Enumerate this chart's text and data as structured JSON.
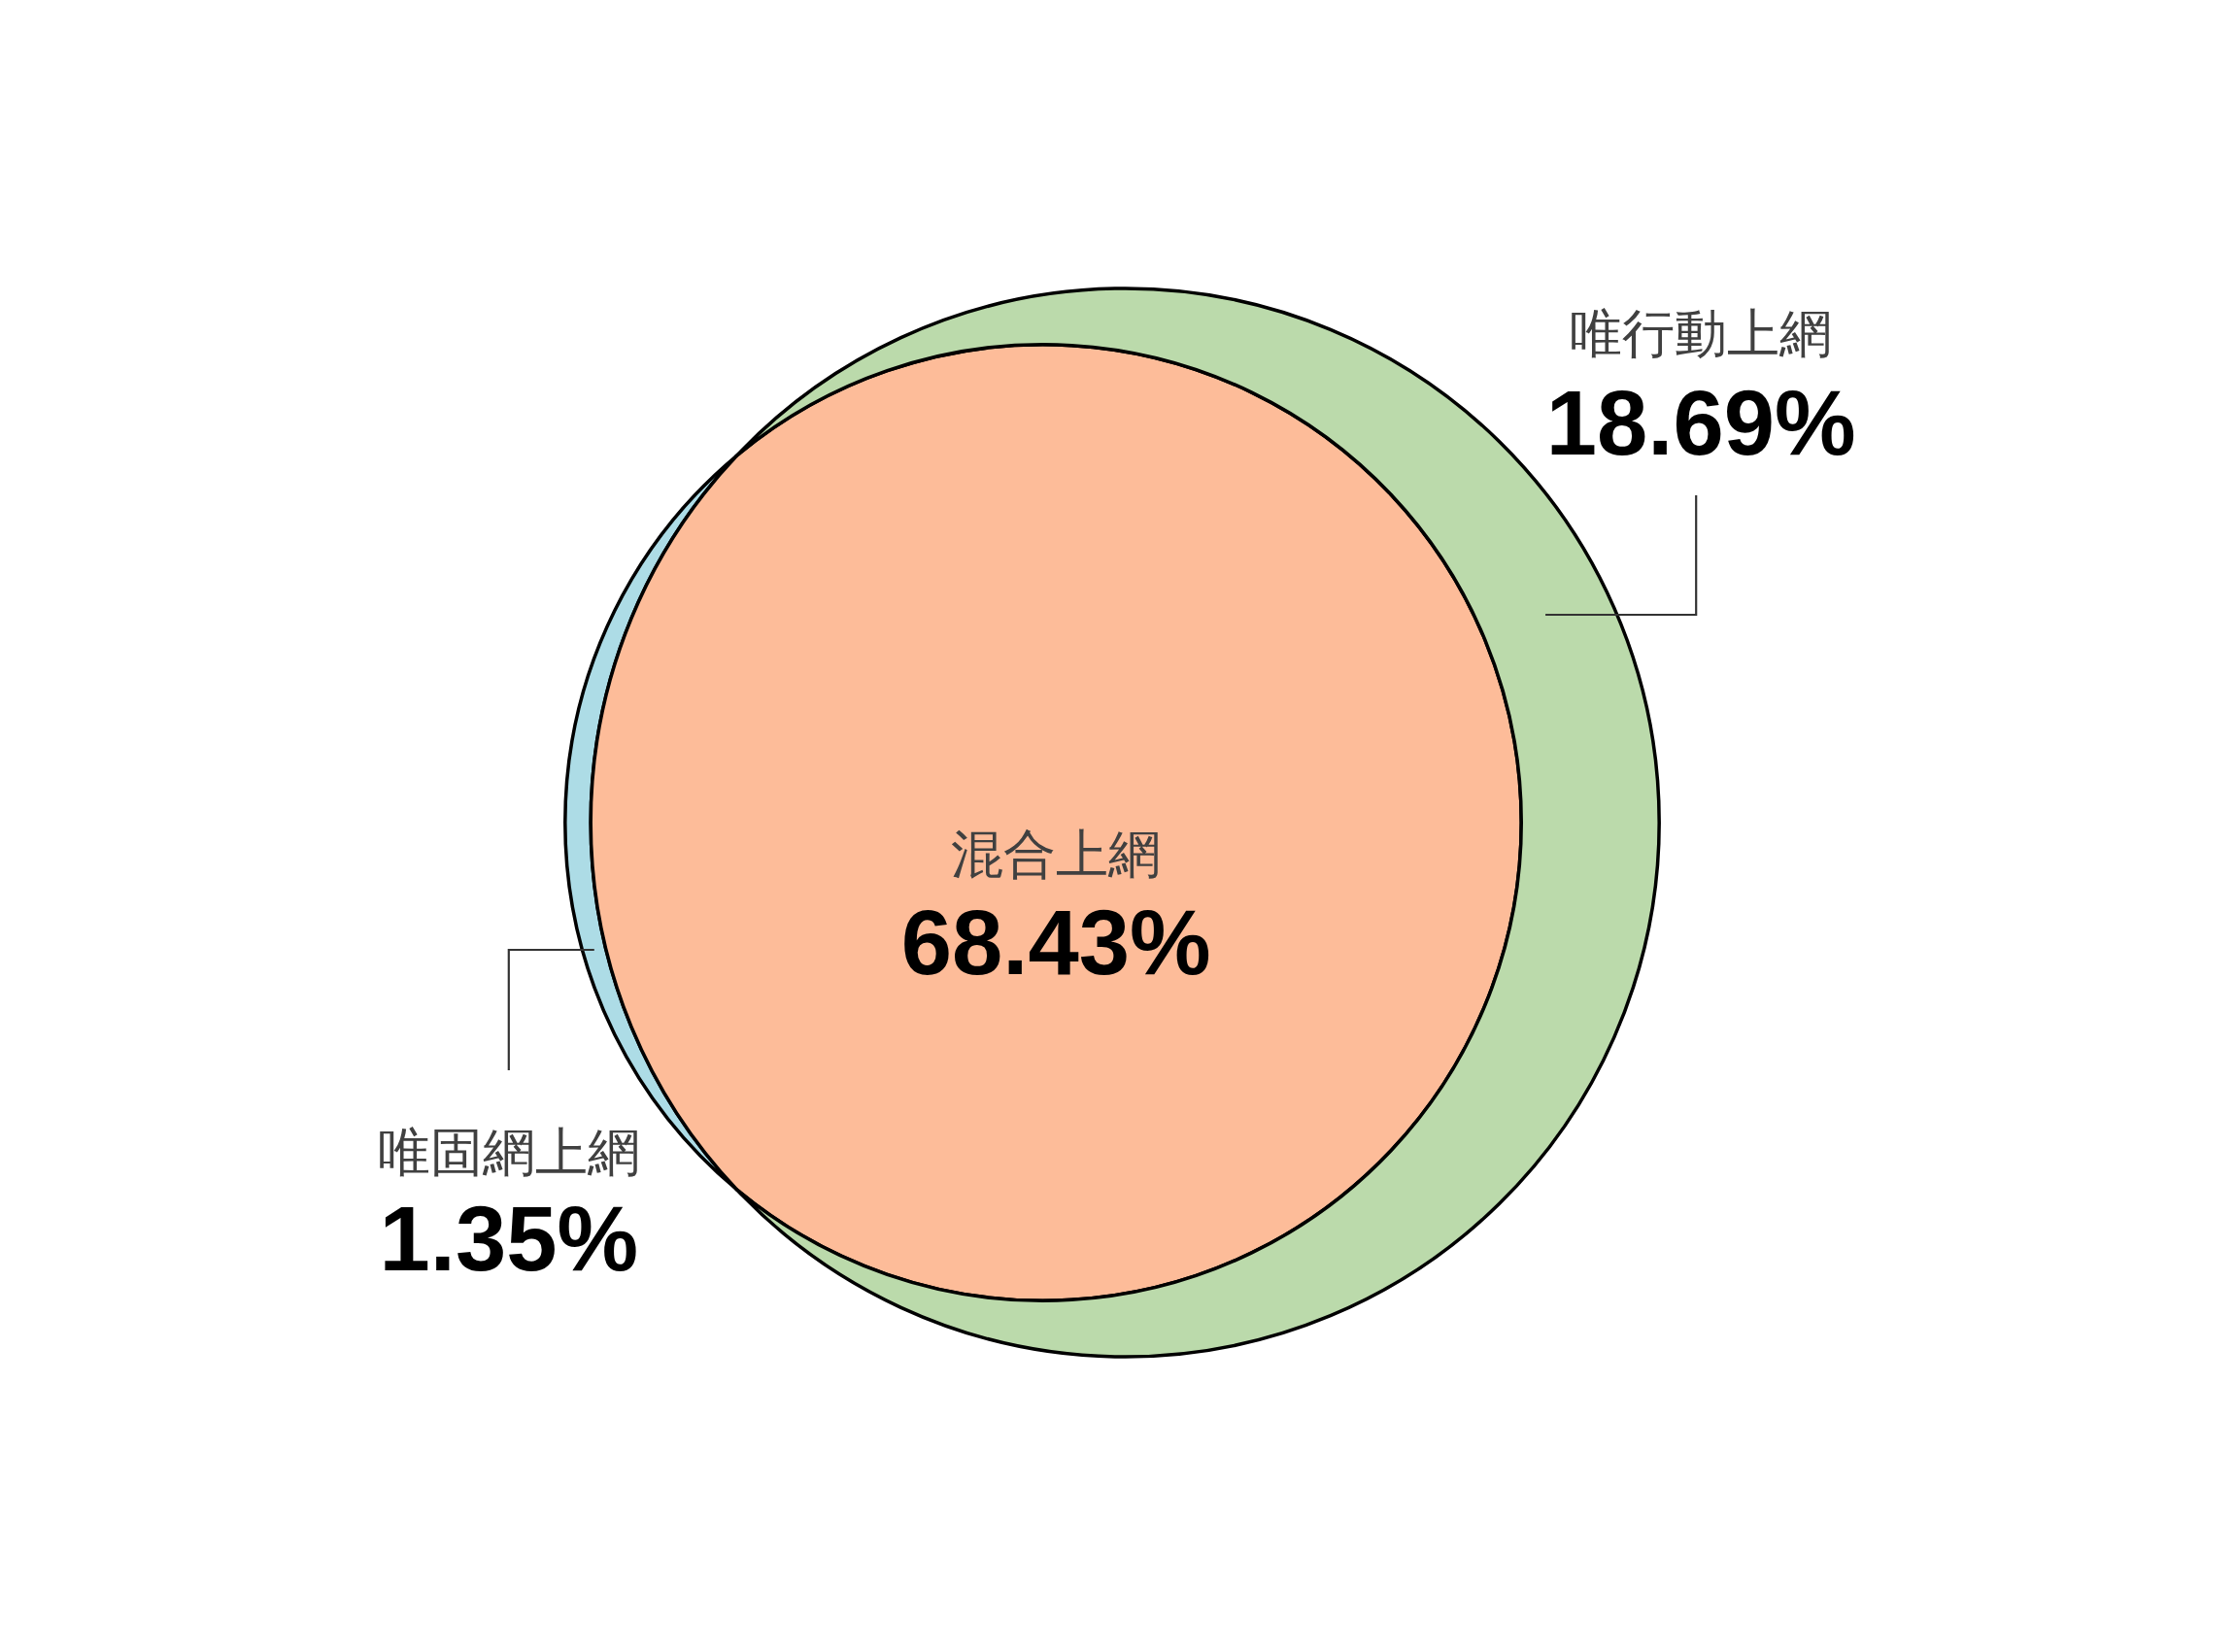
{
  "chart_data": {
    "type": "other",
    "categories": [
      "唯固網上網",
      "混合上網",
      "唯行動上網"
    ],
    "values": [
      1.35,
      68.43,
      18.69
    ],
    "value_labels": [
      "1.35%",
      "68.43%",
      "18.69%"
    ],
    "colors": [
      "#addce6",
      "#fdbc99",
      "#bbdaab"
    ]
  }
}
